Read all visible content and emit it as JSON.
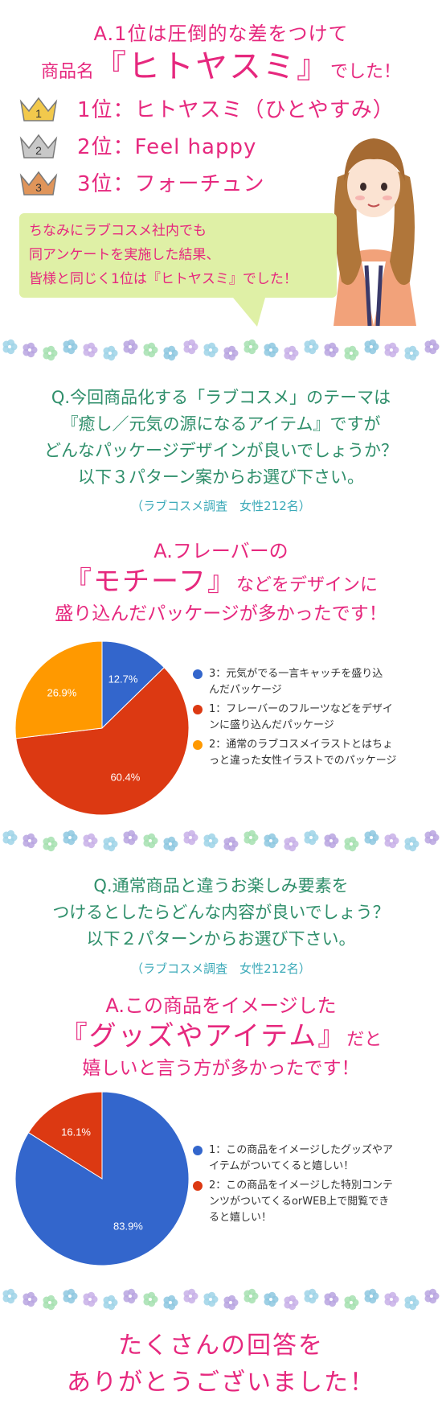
{
  "section1": {
    "line1": "A.1位は圧倒的な差をつけて",
    "line2_prefix": "商品名",
    "line2_big": "『ヒトヤスミ』",
    "line2_suffix": "でした！",
    "ranks": [
      {
        "num": "1",
        "text": "1位：ヒトヤスミ（ひとやすみ）",
        "crown_color": "#f2c94c"
      },
      {
        "num": "2",
        "text": "2位：Feel happy",
        "crown_color": "#c8c8c8"
      },
      {
        "num": "3",
        "text": "3位：フォーチュン",
        "crown_color": "#e0955a"
      }
    ],
    "bubble_lines": [
      "ちなみにラブコスメ社内でも",
      "同アンケートを実施した結果、",
      "皆様と同じく1位は『ヒトヤスミ』でした！"
    ]
  },
  "q1": {
    "lines": [
      "Q.今回商品化する「ラブコスメ」のテーマは",
      "『癒し／元気の源になるアイテム』ですが",
      "どんなパッケージデザインが良いでしょうか？",
      "以下３パターン案からお選び下さい。"
    ],
    "survey": "（ラブコスメ調査　女性212名）",
    "answer_line1": "A.フレーバーの",
    "answer_big": "『モチーフ』",
    "answer_suffix": "などをデザインに",
    "answer_line3": "盛り込んだパッケージが多かったです！"
  },
  "q2": {
    "lines": [
      "Q.通常商品と違うお楽しみ要素を",
      "つけるとしたらどんな内容が良いでしょう？",
      "以下２パターンからお選び下さい。"
    ],
    "survey": "（ラブコスメ調査　女性212名）",
    "answer_line1": "A.この商品をイメージした",
    "answer_big": "『グッズやアイテム』",
    "answer_suffix": "だと",
    "answer_line3": "嬉しいと言う方が多かったです！"
  },
  "closing": {
    "line1": "たくさんの回答を",
    "line2": "ありがとうございました！"
  },
  "chart_data": [
    {
      "type": "pie",
      "series": [
        {
          "name": "3：元気がでる一言キャッチを盛り込んだパッケージ",
          "value": 12.7,
          "label": "12.7%",
          "color": "#3366cc"
        },
        {
          "name": "1：フレーバーのフルーツなどをデザインに盛り込んだパッケージ",
          "value": 60.4,
          "label": "60.4%",
          "color": "#dc3912"
        },
        {
          "name": "2：通常のラブコスメイラストとはちょっと違った女性イラストでのパッケージ",
          "value": 26.9,
          "label": "26.9%",
          "color": "#ff9900"
        }
      ],
      "legend_lines": [
        [
          "3：元気がでる一言キャッチを盛り込",
          "んだパッケージ"
        ],
        [
          "1：フレーバーのフルーツなどをデザイ",
          "ンに盛り込んだパッケージ"
        ],
        [
          "2：通常のラブコスメイラストとはちょ",
          "っと違った女性イラストでのパッケージ"
        ]
      ]
    },
    {
      "type": "pie",
      "series": [
        {
          "name": "1：この商品をイメージしたグッズやアイテムがついてくると嬉しい！",
          "value": 83.9,
          "label": "83.9%",
          "color": "#3366cc"
        },
        {
          "name": "2：この商品をイメージした特別コンテンツがついてくるorWEB上で閲覧できると嬉しい！",
          "value": 16.1,
          "label": "16.1%",
          "color": "#dc3912"
        }
      ],
      "legend_lines": [
        [
          "1：この商品をイメージしたグッズやア",
          "イテムがついてくると嬉しい！"
        ],
        [
          "2：この商品をイメージした特別コンテ",
          "ンツがついてくるorWEB上で閲覧でき",
          "ると嬉しい！"
        ]
      ]
    }
  ]
}
